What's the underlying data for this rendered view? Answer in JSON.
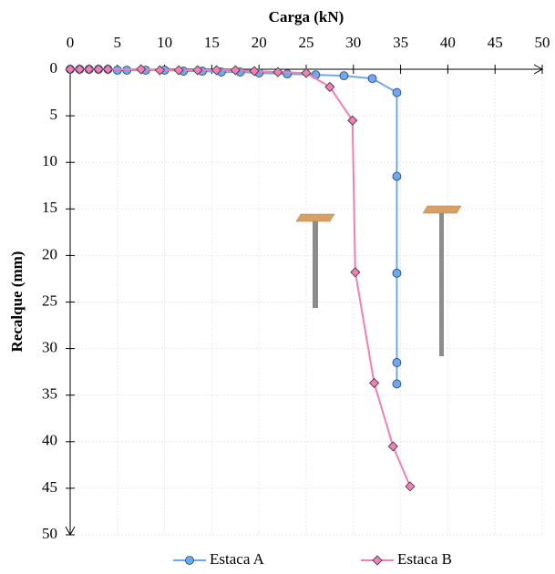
{
  "chart_data": {
    "type": "line",
    "x_label": "Carga (kN)",
    "y_label": "Recalque (mm)",
    "xlim": [
      0,
      50
    ],
    "xticks": [
      0,
      5,
      10,
      15,
      20,
      25,
      30,
      35,
      40,
      45,
      50
    ],
    "ylim": [
      0,
      50
    ],
    "yticks": [
      0,
      5,
      10,
      15,
      20,
      25,
      30,
      35,
      40,
      45,
      50
    ],
    "y_inverted": true,
    "x_axis_position": "top",
    "grid": true,
    "legend": "bottom",
    "series": [
      {
        "name": "Estaca A",
        "color": "#6fa8ec",
        "marker": "circle",
        "x": [
          0,
          1,
          2,
          3,
          4,
          5,
          6,
          8,
          10,
          12,
          14,
          16,
          18,
          20,
          23,
          26,
          29,
          32,
          34.6,
          34.6,
          34.6,
          34.6,
          34.6
        ],
        "values": [
          0,
          0,
          0,
          0,
          0,
          0.1,
          0.1,
          0.1,
          0.1,
          0.2,
          0.2,
          0.3,
          0.3,
          0.4,
          0.5,
          0.6,
          0.7,
          1.0,
          2.5,
          11.5,
          21.9,
          31.5,
          33.8
        ]
      },
      {
        "name": "Estaca B",
        "color": "#f07fb5",
        "marker": "diamond",
        "x": [
          0,
          1,
          2,
          3,
          4,
          7.5,
          9.5,
          11.5,
          13.5,
          15.5,
          17.5,
          19.5,
          22,
          25,
          27.5,
          29.9,
          30.2,
          32.2,
          34.2,
          36
        ],
        "values": [
          0,
          0,
          0,
          0,
          0,
          0,
          0.1,
          0.1,
          0.1,
          0.1,
          0.1,
          0.2,
          0.3,
          0.4,
          1.9,
          5.5,
          21.8,
          33.7,
          40.5,
          44.8
        ]
      }
    ]
  }
}
